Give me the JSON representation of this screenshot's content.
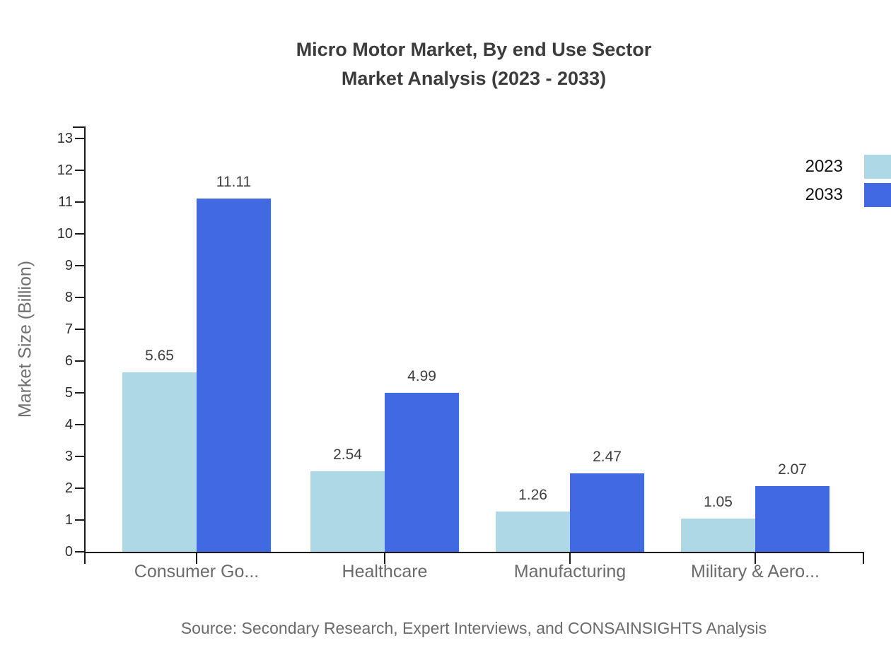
{
  "page": {
    "background": "#ffffff"
  },
  "chart_data": {
    "type": "bar",
    "title": "Micro Motor Market, By end Use Sector",
    "subtitle": "Market Analysis (2023 - 2033)",
    "categories": [
      "Consumer Go...",
      "Healthcare",
      "Manufacturing",
      "Military & Aero..."
    ],
    "series": [
      {
        "name": "2023",
        "color": "#ADD8E6",
        "values": [
          5.65,
          2.54,
          1.26,
          1.05
        ]
      },
      {
        "name": "2033",
        "color": "#4169E1",
        "values": [
          11.11,
          4.99,
          2.47,
          2.07
        ]
      }
    ],
    "value_labels": [
      "5.65",
      "11.11",
      "2.54",
      "4.99",
      "1.26",
      "2.47",
      "1.05",
      "2.07"
    ],
    "xlabel": "",
    "ylabel": "Market Size (Billion)",
    "ylim": [
      0,
      13
    ],
    "ytick_step": 1,
    "yticks": [
      0,
      1,
      2,
      3,
      4,
      5,
      6,
      7,
      8,
      9,
      10,
      11,
      12,
      13
    ],
    "grid": false,
    "legend_position": "top-right",
    "legend_entries": [
      "2023",
      "2033"
    ],
    "axis_color": "#1a1a1a",
    "source": "Source: Secondary Research, Expert Interviews, and CONSAINSIGHTS Analysis"
  }
}
